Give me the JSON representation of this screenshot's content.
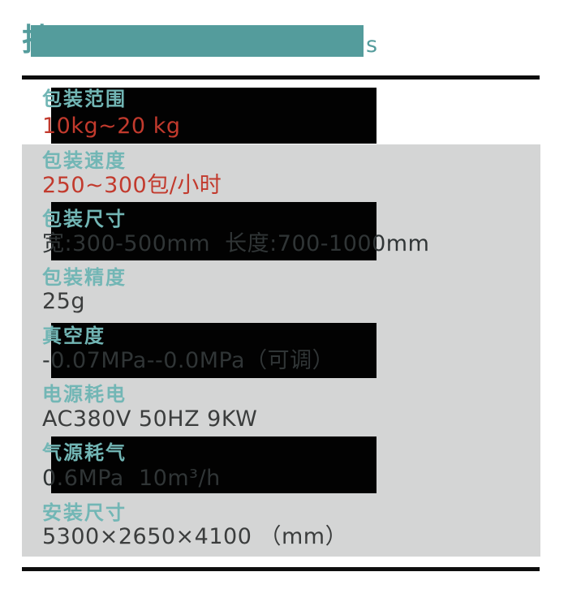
{
  "title": {
    "left_fragment": "技",
    "right_fragment": "s"
  },
  "colors": {
    "accent_teal": "#549c9c",
    "label_teal": "#72b6b5",
    "value_red": "#c23a2d",
    "value_dark": "#3b3d3d",
    "value_on_black": "#303536",
    "panel_gray": "#d4d5d5",
    "block_black": "#020202",
    "rule_black": "#0d0d0d"
  },
  "specs": {
    "rows": [
      {
        "label": "包装范围",
        "value": "10kg~20 kg"
      },
      {
        "label": "包装速度",
        "value": "250~300包/小时"
      },
      {
        "label": "包装尺寸",
        "value": "宽:300-500mm  长度:700-1000mm"
      },
      {
        "label": "包装精度",
        "value": "25g"
      },
      {
        "label": "真空度",
        "value": "-0.07MPa--0.0MPa（可调）"
      },
      {
        "label": "电源耗电",
        "value": "AC380V 50HZ 9KW"
      },
      {
        "label": "气源耗气",
        "value": "0.6MPa  10m³/h"
      },
      {
        "label": "安装尺寸",
        "value": "5300×2650×4100 （mm）"
      }
    ]
  }
}
